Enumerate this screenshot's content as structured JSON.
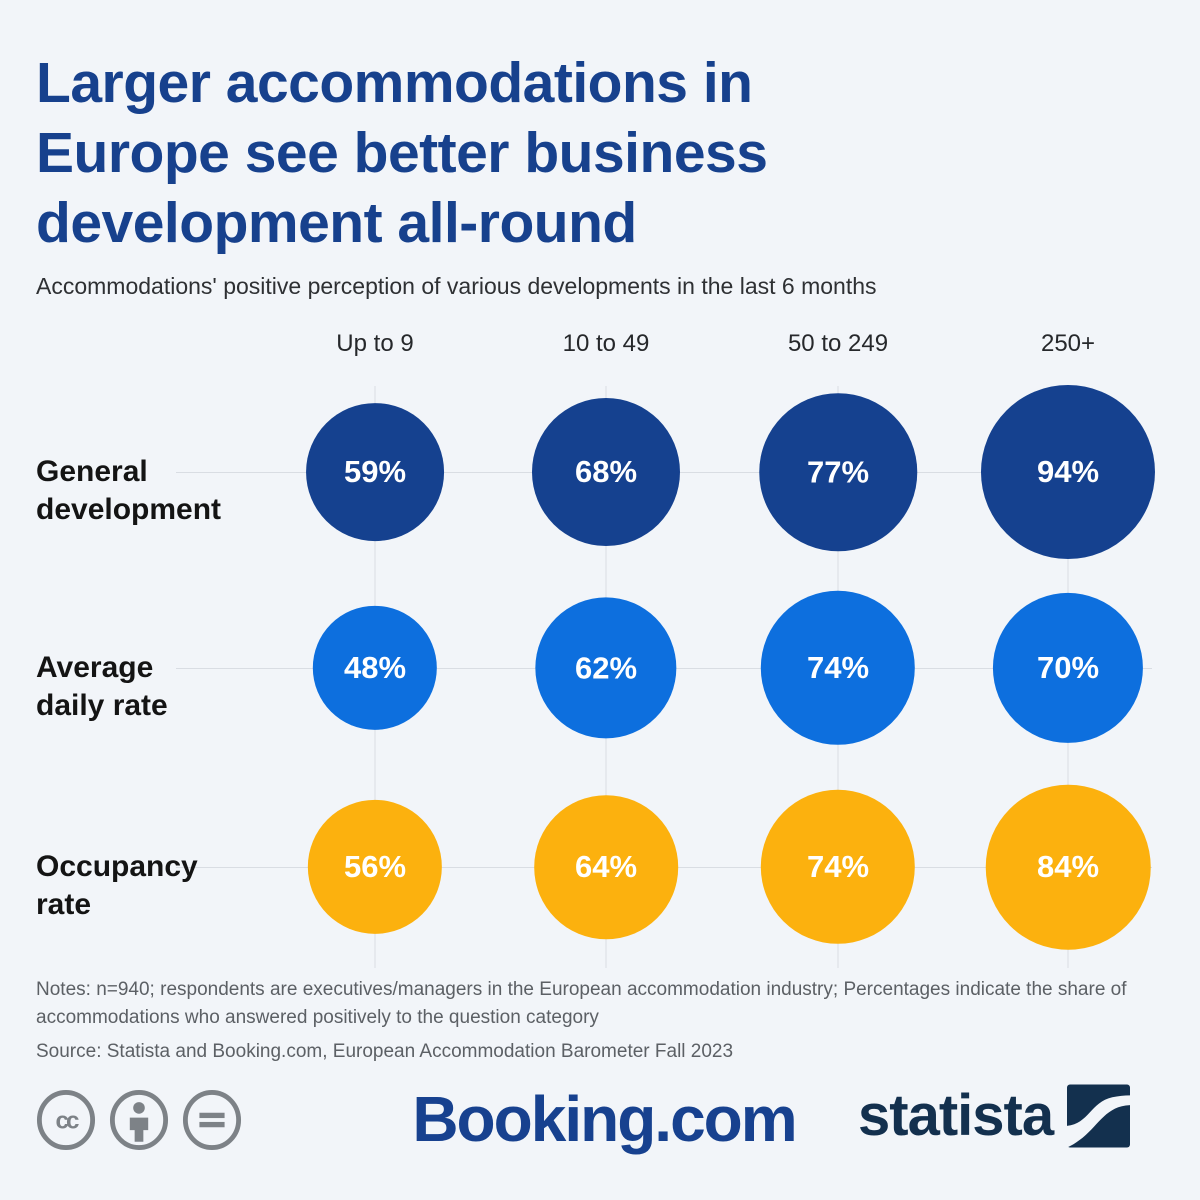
{
  "page": {
    "background": "#f2f5f9"
  },
  "title": "Larger accommodations in Europe see better business development all-round",
  "title_lines": [
    "Larger accommodations in",
    "Europe see better business",
    "development all-round"
  ],
  "subtitle": "Accommodations' positive perception of various developments in the last 6 months",
  "chart_data": {
    "type": "bubble",
    "categories": [
      "Up to 9",
      "10 to 49",
      "50 to 249",
      "250+"
    ],
    "unit": "%",
    "series": [
      {
        "name": "General development",
        "name_lines": [
          "General",
          "development"
        ],
        "color": "#15418f",
        "values": [
          59,
          68,
          77,
          94
        ],
        "labels": [
          "59%",
          "68%",
          "77%",
          "94%"
        ]
      },
      {
        "name": "Average daily rate",
        "name_lines": [
          "Average",
          "daily rate"
        ],
        "color": "#0d6fde",
        "values": [
          48,
          62,
          74,
          70
        ],
        "labels": [
          "48%",
          "62%",
          "74%",
          "70%"
        ]
      },
      {
        "name": "Occupancy rate",
        "name_lines": [
          "Occupancy",
          "rate"
        ],
        "color": "#fcb10e",
        "values": [
          56,
          64,
          74,
          84
        ],
        "labels": [
          "56%",
          "64%",
          "74%",
          "84%"
        ]
      }
    ],
    "layout": {
      "bubble_area_proportional_to_value": true,
      "grid": true,
      "rows_are_series": true,
      "columns_are_categories": true
    }
  },
  "notes": "Notes: n=940; respondents are executives/managers in the European accommodation industry; Percentages indicate the share of accommodations who answered positively to the question category",
  "source": "Source: Statista and Booking.com, European Accommodation Barometer Fall 2023",
  "footer": {
    "license_icons": [
      "cc-icon",
      "attribution-icon",
      "no-derivatives-icon"
    ],
    "booking_label": "Booking.com",
    "statista_label": "statista"
  },
  "colors": {
    "background": "#f2f5f9",
    "title": "#17418d",
    "subtitle": "#2e3033",
    "row_label": "#141414",
    "gridline": "#d9dde3",
    "bubble_text": "#ffffff",
    "notes": "#5c6065",
    "booking_blue": "#17418f",
    "statista_navy": "#13304e",
    "cc_gray": "#7d8287"
  }
}
